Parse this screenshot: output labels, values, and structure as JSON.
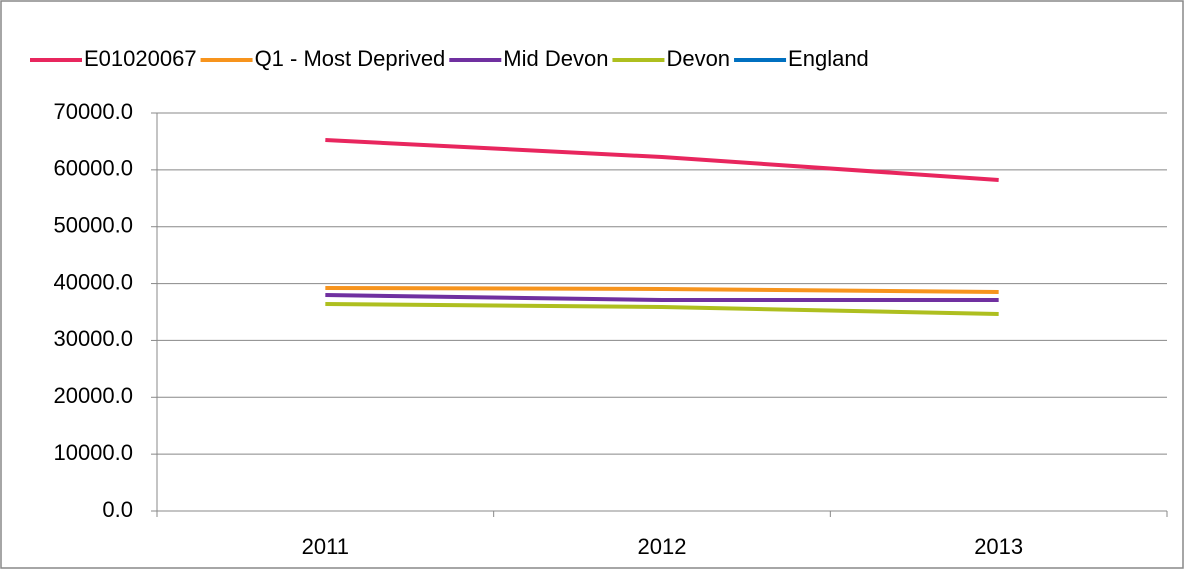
{
  "chart_data": {
    "type": "line",
    "categories": [
      "2011",
      "2012",
      "2013"
    ],
    "series": [
      {
        "name": "E01020067",
        "color": "#e8265e",
        "values": [
          65250,
          62260,
          58220
        ]
      },
      {
        "name": "Q1 - Most Deprived",
        "color": "#f7941d",
        "values": [
          39220,
          39050,
          38520
        ]
      },
      {
        "name": "Mid Devon",
        "color": "#7030a0",
        "values": [
          37990,
          37110,
          37110
        ]
      },
      {
        "name": "Devon",
        "color": "#aebf1f",
        "values": [
          36400,
          35880,
          34650
        ]
      },
      {
        "name": "England",
        "color": "#0070c0",
        "values": [
          null,
          null,
          null
        ]
      }
    ],
    "ylim": [
      0,
      70000
    ],
    "yticks": [
      {
        "value": 0,
        "label": "0.0"
      },
      {
        "value": 10000,
        "label": "10000.0"
      },
      {
        "value": 20000,
        "label": "20000.0"
      },
      {
        "value": 30000,
        "label": "30000.0"
      },
      {
        "value": 40000,
        "label": "40000.0"
      },
      {
        "value": 50000,
        "label": "50000.0"
      },
      {
        "value": 60000,
        "label": "60000.0"
      },
      {
        "value": 70000,
        "label": "70000.0"
      }
    ],
    "grid": true,
    "legend": "top"
  }
}
